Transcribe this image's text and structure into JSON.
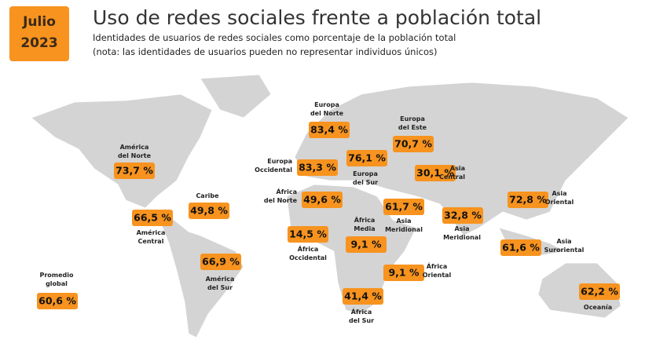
{
  "header": {
    "badge": [
      "Julio",
      "2023"
    ],
    "title": "Uso de redes sociales frente a población total",
    "subtitle": [
      "Identidades de usuarios de redes sociales como porcentaje de la población total",
      "(nota: las identidades de usuarios pueden no representar individuos únicos)"
    ]
  },
  "regions": [
    {
      "lines": [
        "América",
        "del Norte"
      ],
      "value": "73,7 %"
    },
    {
      "lines": [
        "Caribe"
      ],
      "value": "49,8 %"
    },
    {
      "lines": [
        "América",
        "Central"
      ],
      "value": "66,5 %"
    },
    {
      "lines": [
        "América",
        "del Sur"
      ],
      "value": "66,9 %"
    },
    {
      "lines": [
        "Promedio",
        "global"
      ],
      "value": "60,6 %"
    },
    {
      "lines": [
        "Europa",
        "del Norte"
      ],
      "value": "83,4 %"
    },
    {
      "lines": [
        "Europa",
        "Occidental"
      ],
      "value": "83,3 %"
    },
    {
      "lines": [
        "Europa",
        "del Sur"
      ],
      "value": "76,1 %"
    },
    {
      "lines": [
        "Europa",
        "del Este"
      ],
      "value": "70,7 %"
    },
    {
      "lines": [
        "África",
        "del Norte"
      ],
      "value": "49,6 %"
    },
    {
      "lines": [
        "Asia",
        "Central"
      ],
      "value": "30,1 %"
    },
    {
      "lines": [
        "África",
        "Occidental"
      ],
      "value": "14,5 %"
    },
    {
      "lines": [
        "África",
        "Media"
      ],
      "value": "9,1 %"
    },
    {
      "lines": [
        "Asia",
        "Meridional"
      ],
      "value": "61,7 %"
    },
    {
      "lines": [
        "Asia",
        "Meridional"
      ],
      "value": "32,8 %"
    },
    {
      "lines": [
        "Asia",
        "Oriental"
      ],
      "value": "72,8 %"
    },
    {
      "lines": [
        "Asia",
        "Suroriental"
      ],
      "value": "61,6 %"
    },
    {
      "lines": [
        "África",
        "Oriental"
      ],
      "value": "9,1 %"
    },
    {
      "lines": [
        "África",
        "del Sur"
      ],
      "value": "41,4 %"
    },
    {
      "lines": [
        "Oceanía"
      ],
      "value": "62,2 %"
    }
  ]
}
